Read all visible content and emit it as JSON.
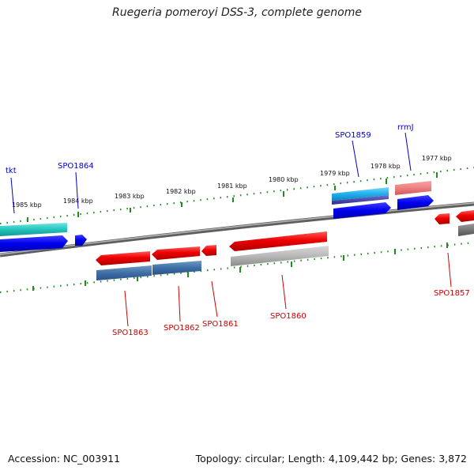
{
  "title": "Ruegeria pomeroyi DSS-3, complete genome",
  "footer": {
    "accession": "Accession: NC_003911",
    "topology": "Topology: circular; Length: 4,109,442 bp; Genes: 3,872"
  },
  "colors": {
    "backbone": "#888888",
    "ticks": "#228B22",
    "label_forward": "#0000cc",
    "label_reverse": "#cc0000"
  },
  "ticks": [
    "1985 kbp",
    "1984 kbp",
    "1983 kbp",
    "1982 kbp",
    "1981 kbp",
    "1980 kbp",
    "1979 kbp",
    "1978 kbp",
    "1977 kbp"
  ],
  "features": [
    {
      "label": "tkt",
      "strand": "+"
    },
    {
      "label": "SPO1864",
      "strand": "+"
    },
    {
      "label": "SPO1859",
      "strand": "+"
    },
    {
      "label": "rrmJ",
      "strand": "+"
    },
    {
      "label": "SPO1863",
      "strand": "-"
    },
    {
      "label": "SPO1862",
      "strand": "-"
    },
    {
      "label": "SPO1861",
      "strand": "-"
    },
    {
      "label": "SPO1860",
      "strand": "-"
    },
    {
      "label": "SPO1857",
      "strand": "-"
    }
  ]
}
